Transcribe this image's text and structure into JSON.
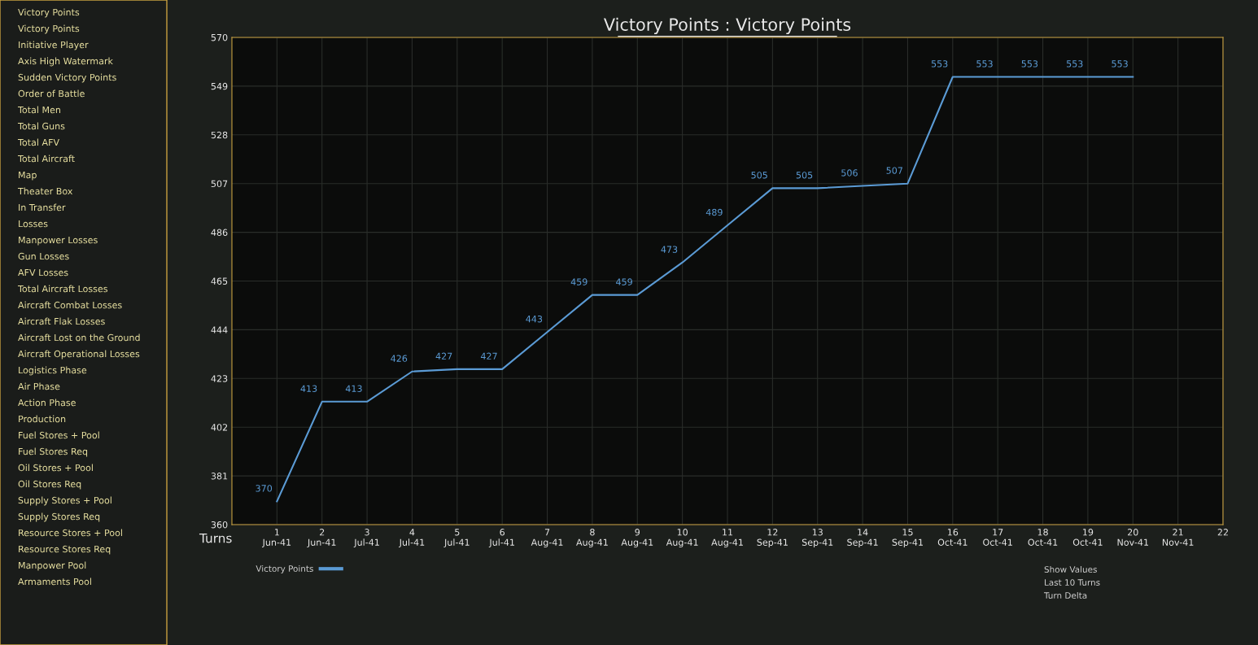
{
  "chart_data": {
    "type": "line",
    "title": "Victory Points : Victory Points",
    "xlabel": "Turns",
    "categories": [
      "1\nJun-41",
      "2\nJun-41",
      "3\nJul-41",
      "4\nJul-41",
      "5\nJul-41",
      "6\nJul-41",
      "7\nAug-41",
      "8\nAug-41",
      "9\nAug-41",
      "10\nAug-41",
      "11\nAug-41",
      "12\nSep-41",
      "13\nSep-41",
      "14\nSep-41",
      "15\nSep-41",
      "16\nOct-41",
      "17\nOct-41",
      "18\nOct-41",
      "19\nOct-41",
      "20\nNov-41",
      "21\nNov-41",
      "22"
    ],
    "series": [
      {
        "name": "Victory Points",
        "color": "#5b9bd5",
        "values": [
          370,
          413,
          413,
          426,
          427,
          427,
          443,
          459,
          459,
          473,
          489,
          505,
          505,
          506,
          507,
          553,
          553,
          553,
          553,
          553,
          null,
          null
        ]
      }
    ],
    "ylim": [
      360,
      570
    ],
    "yticks": [
      360,
      381,
      402,
      423,
      444,
      465,
      486,
      507,
      528,
      549,
      570
    ],
    "grid": true,
    "data_labels": true,
    "legend": "bottom left",
    "line_style": "solid",
    "annotations": [
      "Victory Points",
      "Victory Points",
      "Initiative Player",
      "Axis High Watermark",
      "Sudden Victory Points",
      "Order of Battle",
      "Total Men",
      "Total Guns",
      "Total AFV",
      "Total Aircraft",
      "Map",
      "Theater Box",
      "In Transfer",
      "Losses",
      "Manpower Losses",
      "Gun Losses",
      "AFV Losses",
      "Total Aircraft Losses",
      "Aircraft Combat Losses",
      "Aircraft Flak Losses",
      "Aircraft Lost on the Ground",
      "Aircraft Operational Losses",
      "Logistics Phase",
      "Air Phase",
      "Action Phase",
      "Production",
      "Fuel Stores + Pool",
      "Fuel Stores Req",
      "Oil Stores + Pool",
      "Oil Stores Req",
      "Supply Stores + Pool",
      "Supply Stores Req",
      "Resource Stores + Pool",
      "Resource Stores Req",
      "Manpower Pool",
      "Armaments Pool",
      "Show Values",
      "Last 10 Turns",
      "Turn Delta"
    ]
  }
}
